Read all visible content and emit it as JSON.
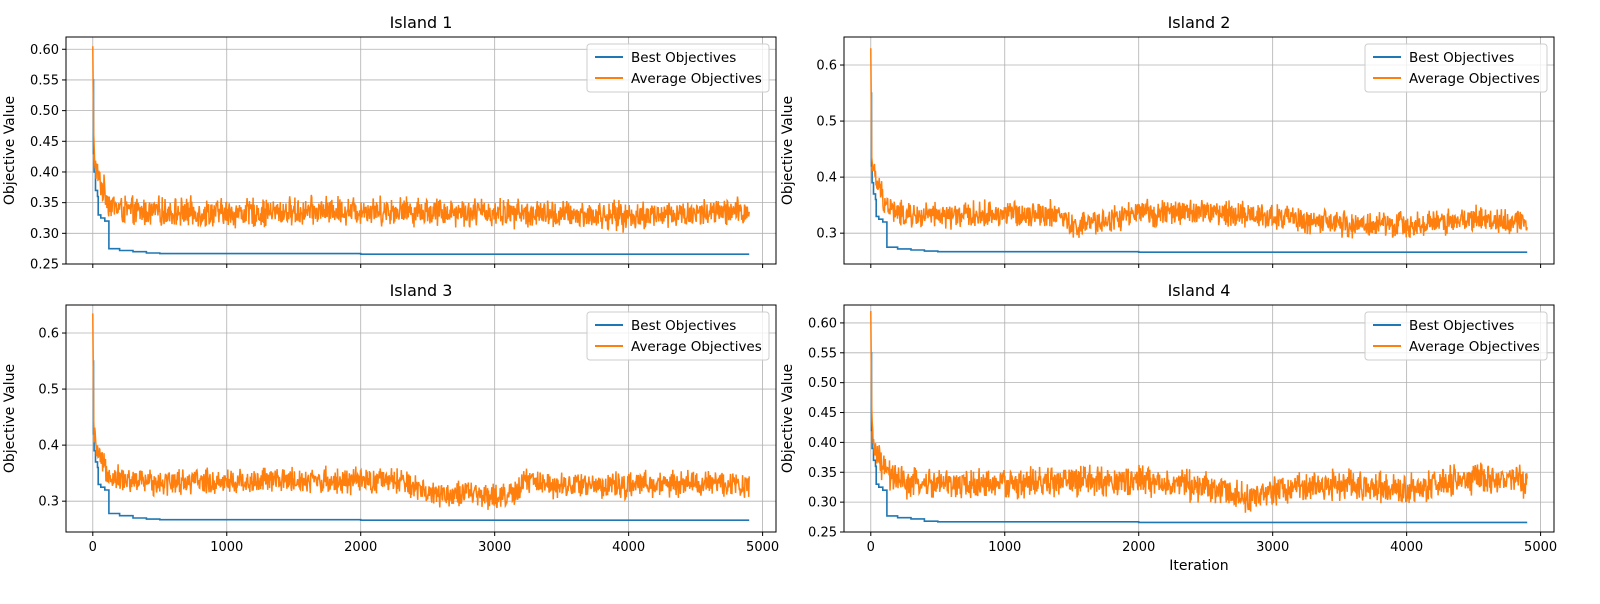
{
  "figure": {
    "panels": [
      {
        "title": "Island 1",
        "ylabel": "Objective Value",
        "xlabel": ""
      },
      {
        "title": "Island 2",
        "ylabel": "Objective Value",
        "xlabel": ""
      },
      {
        "title": "Island 3",
        "ylabel": "Objective Value",
        "xlabel": ""
      },
      {
        "title": "Island 4",
        "ylabel": "Objective Value",
        "xlabel": "Iteration"
      }
    ],
    "colors": {
      "best": "#1f77b4",
      "average": "#ff7f0e",
      "grid": "#b0b0b0"
    }
  },
  "chart_data": [
    {
      "type": "line",
      "title": "Island 1",
      "xlabel": "",
      "ylabel": "Objective Value",
      "xlim": [
        -200,
        5100
      ],
      "ylim": [
        0.25,
        0.62
      ],
      "xticks": [
        0,
        1000,
        2000,
        3000,
        4000,
        5000
      ],
      "yticks": [
        0.25,
        0.3,
        0.35,
        0.4,
        0.45,
        0.5,
        0.55,
        0.6
      ],
      "ytick_labels": [
        "0.25",
        "0.30",
        "0.35",
        "0.40",
        "0.45",
        "0.50",
        "0.55",
        "0.60"
      ],
      "grid": true,
      "legend": "top-right",
      "series": [
        {
          "name": "Best Objectives",
          "x": [
            0,
            5,
            10,
            20,
            35,
            40,
            60,
            90,
            120,
            200,
            300,
            400,
            500,
            1000,
            2000,
            3000,
            4000,
            4900
          ],
          "y": [
            0.55,
            0.43,
            0.4,
            0.37,
            0.36,
            0.33,
            0.325,
            0.32,
            0.275,
            0.272,
            0.27,
            0.268,
            0.267,
            0.267,
            0.266,
            0.266,
            0.266,
            0.266
          ]
        },
        {
          "name": "Average Objectives",
          "x": [
            0,
            5,
            10,
            20,
            40,
            60,
            80,
            100,
            120,
            150,
            200,
            300,
            500,
            1000,
            1500,
            2000,
            2500,
            3000,
            3500,
            4000,
            4500,
            4900
          ],
          "y": [
            0.605,
            0.47,
            0.43,
            0.41,
            0.39,
            0.38,
            0.37,
            0.365,
            0.35,
            0.345,
            0.34,
            0.335,
            0.335,
            0.333,
            0.335,
            0.338,
            0.336,
            0.334,
            0.33,
            0.328,
            0.332,
            0.335
          ],
          "noise": 0.02
        }
      ]
    },
    {
      "type": "line",
      "title": "Island 2",
      "xlabel": "",
      "ylabel": "Objective Value",
      "xlim": [
        -200,
        5100
      ],
      "ylim": [
        0.245,
        0.65
      ],
      "xticks": [
        0,
        1000,
        2000,
        3000,
        4000,
        5000
      ],
      "yticks": [
        0.3,
        0.4,
        0.5,
        0.6
      ],
      "ytick_labels": [
        "0.3",
        "0.4",
        "0.5",
        "0.6"
      ],
      "grid": true,
      "legend": "top-right",
      "series": [
        {
          "name": "Best Objectives",
          "x": [
            0,
            5,
            10,
            20,
            35,
            40,
            60,
            90,
            120,
            200,
            300,
            400,
            500,
            1000,
            2000,
            3000,
            4000,
            4900
          ],
          "y": [
            0.55,
            0.42,
            0.39,
            0.37,
            0.36,
            0.33,
            0.325,
            0.32,
            0.275,
            0.272,
            0.27,
            0.268,
            0.267,
            0.267,
            0.266,
            0.266,
            0.266,
            0.266
          ]
        },
        {
          "name": "Average Objectives",
          "x": [
            0,
            5,
            10,
            20,
            40,
            60,
            80,
            100,
            120,
            150,
            200,
            300,
            500,
            1000,
            1400,
            1500,
            2000,
            2500,
            3000,
            3500,
            4000,
            4500,
            4900
          ],
          "y": [
            0.63,
            0.47,
            0.43,
            0.41,
            0.39,
            0.38,
            0.37,
            0.36,
            0.35,
            0.345,
            0.335,
            0.33,
            0.33,
            0.335,
            0.335,
            0.31,
            0.335,
            0.338,
            0.33,
            0.315,
            0.315,
            0.325,
            0.32
          ],
          "noise": 0.02
        }
      ]
    },
    {
      "type": "line",
      "title": "Island 3",
      "xlabel": "",
      "ylabel": "Objective Value",
      "xlim": [
        -200,
        5100
      ],
      "ylim": [
        0.245,
        0.65
      ],
      "xticks": [
        0,
        1000,
        2000,
        3000,
        4000,
        5000
      ],
      "xtick_labels": [
        "0",
        "1000",
        "2000",
        "3000",
        "4000",
        "5000"
      ],
      "yticks": [
        0.3,
        0.4,
        0.5,
        0.6
      ],
      "ytick_labels": [
        "0.3",
        "0.4",
        "0.5",
        "0.6"
      ],
      "grid": true,
      "legend": "top-right",
      "series": [
        {
          "name": "Best Objectives",
          "x": [
            0,
            5,
            10,
            20,
            35,
            40,
            60,
            90,
            120,
            200,
            300,
            400,
            500,
            1000,
            2000,
            3000,
            4000,
            4900
          ],
          "y": [
            0.55,
            0.42,
            0.39,
            0.37,
            0.36,
            0.33,
            0.325,
            0.32,
            0.278,
            0.274,
            0.27,
            0.268,
            0.267,
            0.267,
            0.266,
            0.266,
            0.266,
            0.266
          ]
        },
        {
          "name": "Average Objectives",
          "x": [
            0,
            5,
            10,
            20,
            40,
            60,
            80,
            100,
            120,
            150,
            200,
            300,
            500,
            1000,
            1500,
            2000,
            2300,
            2500,
            3000,
            3150,
            3200,
            3500,
            4000,
            4500,
            4900
          ],
          "y": [
            0.635,
            0.46,
            0.42,
            0.4,
            0.38,
            0.37,
            0.36,
            0.355,
            0.35,
            0.345,
            0.34,
            0.335,
            0.335,
            0.335,
            0.338,
            0.335,
            0.335,
            0.315,
            0.31,
            0.31,
            0.335,
            0.33,
            0.328,
            0.332,
            0.33
          ],
          "noise": 0.02
        }
      ]
    },
    {
      "type": "line",
      "title": "Island 4",
      "xlabel": "Iteration",
      "ylabel": "Objective Value",
      "xlim": [
        -200,
        5100
      ],
      "ylim": [
        0.25,
        0.63
      ],
      "xticks": [
        0,
        1000,
        2000,
        3000,
        4000,
        5000
      ],
      "xtick_labels": [
        "0",
        "1000",
        "2000",
        "3000",
        "4000",
        "5000"
      ],
      "yticks": [
        0.25,
        0.3,
        0.35,
        0.4,
        0.45,
        0.5,
        0.55,
        0.6
      ],
      "ytick_labels": [
        "0.25",
        "0.30",
        "0.35",
        "0.40",
        "0.45",
        "0.50",
        "0.55",
        "0.60"
      ],
      "grid": true,
      "legend": "top-right",
      "series": [
        {
          "name": "Best Objectives",
          "x": [
            0,
            5,
            10,
            20,
            35,
            40,
            60,
            90,
            120,
            200,
            300,
            400,
            500,
            1000,
            2000,
            3000,
            4000,
            4900
          ],
          "y": [
            0.55,
            0.42,
            0.39,
            0.37,
            0.36,
            0.33,
            0.325,
            0.32,
            0.277,
            0.274,
            0.272,
            0.268,
            0.267,
            0.267,
            0.266,
            0.266,
            0.266,
            0.266
          ]
        },
        {
          "name": "Average Objectives",
          "x": [
            0,
            5,
            10,
            20,
            40,
            60,
            80,
            100,
            120,
            150,
            200,
            300,
            500,
            1000,
            1500,
            2000,
            2500,
            2900,
            3000,
            3500,
            4000,
            4500,
            4900
          ],
          "y": [
            0.62,
            0.46,
            0.42,
            0.4,
            0.38,
            0.37,
            0.36,
            0.355,
            0.35,
            0.345,
            0.335,
            0.33,
            0.33,
            0.33,
            0.335,
            0.335,
            0.325,
            0.305,
            0.32,
            0.33,
            0.32,
            0.34,
            0.335
          ],
          "noise": 0.022
        }
      ]
    }
  ]
}
